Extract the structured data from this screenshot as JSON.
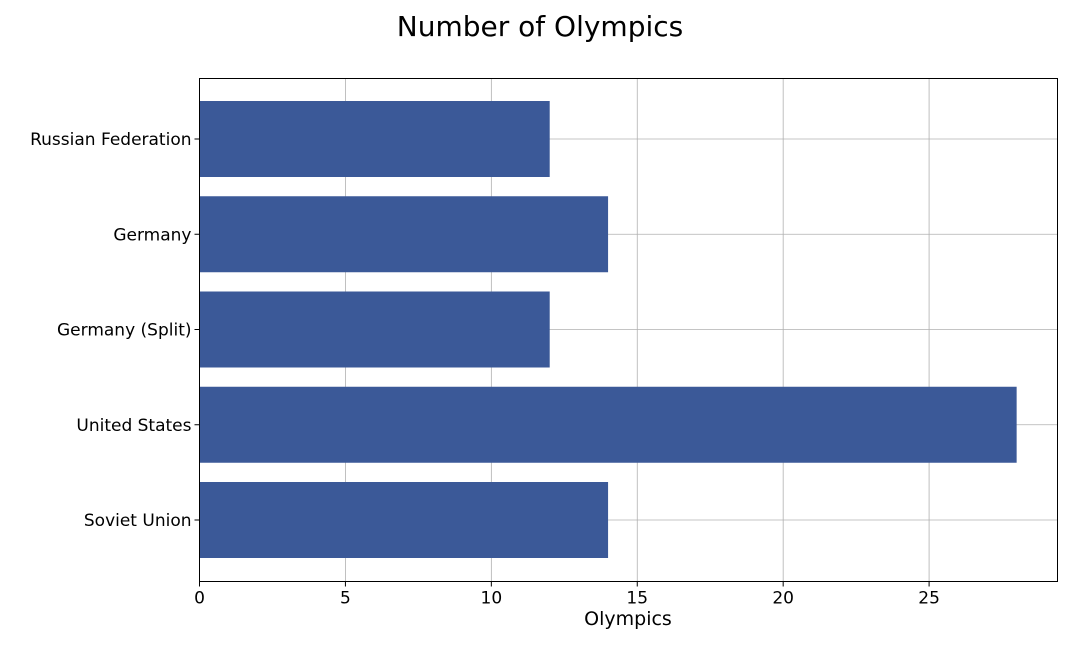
{
  "chart_data": {
    "type": "bar",
    "orientation": "horizontal",
    "title": "Number of Olympics",
    "xlabel": "Olympics",
    "ylabel": "",
    "categories": [
      "Soviet Union",
      "United States",
      "Germany (Split)",
      "Germany",
      "Russian Federation"
    ],
    "values": [
      14,
      28,
      12,
      14,
      12
    ],
    "xlim": [
      0,
      29.4
    ],
    "xticks": [
      0,
      5,
      10,
      15,
      20,
      25
    ],
    "grid": true,
    "legend": "none",
    "bar_color": "#3b5998"
  }
}
